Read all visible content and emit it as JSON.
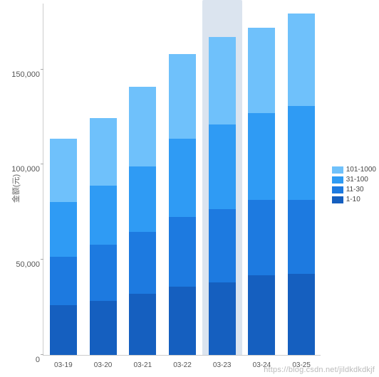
{
  "chart": {
    "type": "stacked-bar",
    "ylabel": "金额(元)",
    "ylim": [
      0,
      185000
    ],
    "ytick_step": 50000,
    "yticks": [
      {
        "v": 0,
        "label": "0"
      },
      {
        "v": 50000,
        "label": "50,000"
      },
      {
        "v": 100000,
        "label": "100,000"
      },
      {
        "v": 150000,
        "label": "150,000"
      }
    ],
    "categories": [
      "03-19",
      "03-20",
      "03-21",
      "03-22",
      "03-23",
      "03-24",
      "03-25"
    ],
    "highlight_index": 4,
    "series": [
      {
        "name": "1-10",
        "color": "#155fbf"
      },
      {
        "name": "11-30",
        "color": "#1d7ae0"
      },
      {
        "name": "31-100",
        "color": "#2f9bf4"
      },
      {
        "name": "101-1000",
        "color": "#6fc1fb"
      }
    ],
    "data": [
      [
        26000,
        25500,
        29000,
        33000
      ],
      [
        28500,
        29500,
        31000,
        35500
      ],
      [
        32000,
        32500,
        34500,
        42000
      ],
      [
        36000,
        36500,
        41000,
        44500
      ],
      [
        38000,
        38500,
        44500,
        46000
      ],
      [
        42000,
        39500,
        45500,
        45000
      ],
      [
        42500,
        39000,
        49500,
        48500
      ]
    ],
    "bar_width_ratio": 0.68,
    "axis_color": "#cccccc",
    "tick_fontsize": 11,
    "label_fontsize": 11,
    "background_color": "#ffffff",
    "highlight_bg_color": "#dbe4ef"
  },
  "watermark": "https://blog.csdn.net/jildkdkdkjf"
}
